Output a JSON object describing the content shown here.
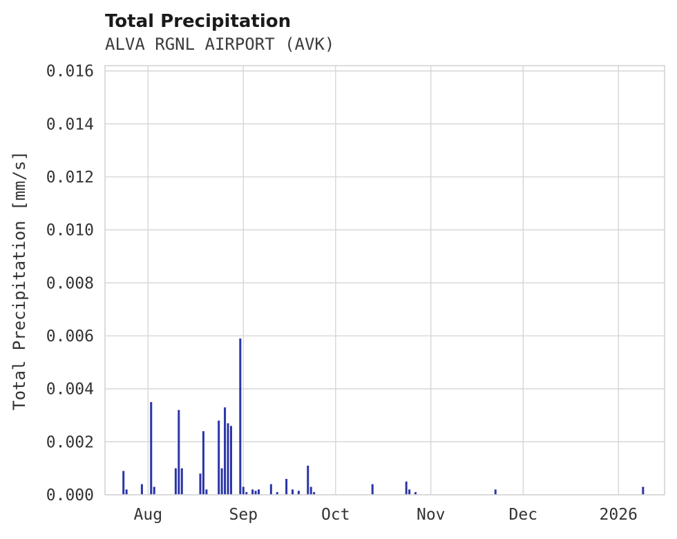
{
  "header": {
    "title": "Total Precipitation",
    "subtitle": "ALVA RGNL AIRPORT (AVK)"
  },
  "chart_data": {
    "type": "bar",
    "title": "Total Precipitation",
    "subtitle": "ALVA RGNL AIRPORT (AVK)",
    "xlabel": "",
    "ylabel": "Total Precipitation [mm/s]",
    "grid": true,
    "legend": "none",
    "x_range": [
      "2025-07-18",
      "2026-01-16"
    ],
    "ylim": [
      0,
      0.0162
    ],
    "y_ticks": [
      0.0,
      0.002,
      0.004,
      0.006,
      0.008,
      0.01,
      0.012,
      0.014,
      0.016
    ],
    "y_tick_labels": [
      "0.000",
      "0.002",
      "0.004",
      "0.006",
      "0.008",
      "0.010",
      "0.012",
      "0.014",
      "0.016"
    ],
    "x_ticks": [
      "2025-08-01",
      "2025-09-01",
      "2025-10-01",
      "2025-11-01",
      "2025-12-01",
      "2026-01-01"
    ],
    "x_tick_labels": [
      "Aug",
      "Sep",
      "Oct",
      "Nov",
      "Dec",
      "2026"
    ],
    "bar_color": "#2a34a8",
    "grid_color": "#d4d4d4",
    "series": [
      {
        "name": "Total Precipitation",
        "points": [
          [
            "2025-07-24",
            0.0009
          ],
          [
            "2025-07-25",
            0.0002
          ],
          [
            "2025-07-30",
            0.0004
          ],
          [
            "2025-08-02",
            0.0035
          ],
          [
            "2025-08-03",
            0.0003
          ],
          [
            "2025-08-10",
            0.001
          ],
          [
            "2025-08-11",
            0.0032
          ],
          [
            "2025-08-12",
            0.001
          ],
          [
            "2025-08-18",
            0.0008
          ],
          [
            "2025-08-19",
            0.0024
          ],
          [
            "2025-08-20",
            0.0002
          ],
          [
            "2025-08-24",
            0.0028
          ],
          [
            "2025-08-25",
            0.001
          ],
          [
            "2025-08-26",
            0.0033
          ],
          [
            "2025-08-27",
            0.0027
          ],
          [
            "2025-08-28",
            0.0026
          ],
          [
            "2025-08-31",
            0.0059
          ],
          [
            "2025-09-01",
            0.0003
          ],
          [
            "2025-09-02",
            0.0001
          ],
          [
            "2025-09-04",
            0.0002
          ],
          [
            "2025-09-05",
            0.00015
          ],
          [
            "2025-09-06",
            0.0002
          ],
          [
            "2025-09-10",
            0.0004
          ],
          [
            "2025-09-12",
            0.0001
          ],
          [
            "2025-09-15",
            0.0006
          ],
          [
            "2025-09-17",
            0.0002
          ],
          [
            "2025-09-19",
            0.00015
          ],
          [
            "2025-09-22",
            0.0011
          ],
          [
            "2025-09-23",
            0.0003
          ],
          [
            "2025-09-24",
            0.0001
          ],
          [
            "2025-10-13",
            0.0004
          ],
          [
            "2025-10-24",
            0.0005
          ],
          [
            "2025-10-25",
            0.0002
          ],
          [
            "2025-10-27",
            0.0001
          ],
          [
            "2025-11-22",
            0.0002
          ],
          [
            "2026-01-09",
            0.0003
          ]
        ]
      }
    ]
  }
}
